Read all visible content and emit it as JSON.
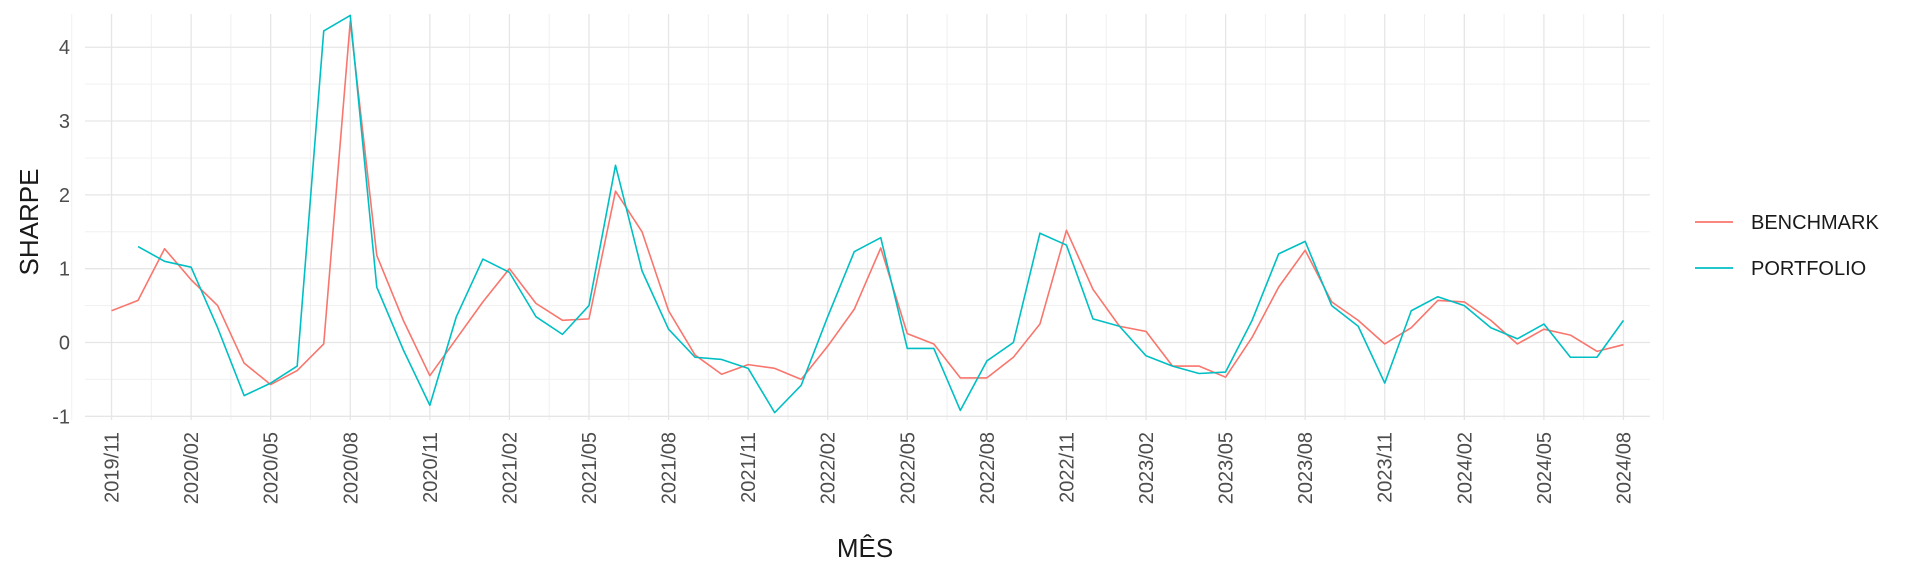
{
  "chart_data": {
    "type": "line",
    "title": "",
    "xlabel": "MÊS",
    "ylabel": "SHARPE",
    "x_tick_labels": [
      "2019/11",
      "2020/02",
      "2020/05",
      "2020/08",
      "2020/11",
      "2021/02",
      "2021/05",
      "2021/08",
      "2021/11",
      "2022/02",
      "2022/05",
      "2022/08",
      "2022/11",
      "2023/02",
      "2023/05",
      "2023/08",
      "2023/11",
      "2024/02",
      "2024/05",
      "2024/08"
    ],
    "y_ticks": [
      -1,
      0,
      1,
      2,
      3,
      4
    ],
    "xlim": [
      "2019/10",
      "2024/09"
    ],
    "ylim": [
      -1.05,
      4.45
    ],
    "grid": true,
    "legend_position": "right",
    "series": [
      {
        "name": "BENCHMARK",
        "color": "#F8766D",
        "x": [
          "2019/11",
          "2019/12",
          "2020/01",
          "2020/02",
          "2020/03",
          "2020/04",
          "2020/05",
          "2020/06",
          "2020/07",
          "2020/08",
          "2020/09",
          "2020/10",
          "2020/11",
          "2020/12",
          "2021/01",
          "2021/02",
          "2021/03",
          "2021/04",
          "2021/05",
          "2021/06",
          "2021/07",
          "2021/08",
          "2021/09",
          "2021/10",
          "2021/11",
          "2021/12",
          "2022/01",
          "2022/02",
          "2022/03",
          "2022/04",
          "2022/05",
          "2022/06",
          "2022/07",
          "2022/08",
          "2022/09",
          "2022/10",
          "2022/11",
          "2022/12",
          "2023/01",
          "2023/02",
          "2023/03",
          "2023/04",
          "2023/05",
          "2023/06",
          "2023/07",
          "2023/08",
          "2023/09",
          "2023/10",
          "2023/11",
          "2023/12",
          "2024/01",
          "2024/02",
          "2024/03",
          "2024/04",
          "2024/05",
          "2024/06",
          "2024/07",
          "2024/08"
        ],
        "values": [
          0.43,
          0.57,
          1.27,
          0.85,
          0.5,
          -0.28,
          -0.57,
          -0.38,
          -0.02,
          4.35,
          1.18,
          0.3,
          -0.45,
          0.05,
          0.55,
          1.0,
          0.53,
          0.3,
          0.32,
          2.05,
          1.5,
          0.43,
          -0.17,
          -0.43,
          -0.3,
          -0.35,
          -0.5,
          -0.05,
          0.45,
          1.28,
          0.12,
          -0.02,
          -0.48,
          -0.48,
          -0.2,
          0.25,
          1.52,
          0.72,
          0.22,
          0.15,
          -0.32,
          -0.32,
          -0.47,
          0.07,
          0.75,
          1.25,
          0.55,
          0.3,
          -0.02,
          0.2,
          0.57,
          0.55,
          0.3,
          -0.02,
          0.18,
          0.1,
          -0.12,
          -0.03
        ]
      },
      {
        "name": "PORTFOLIO",
        "color": "#00BFC4",
        "x": [
          "2019/12",
          "2020/01",
          "2020/02",
          "2020/03",
          "2020/04",
          "2020/05",
          "2020/06",
          "2020/07",
          "2020/08",
          "2020/09",
          "2020/10",
          "2020/11",
          "2020/12",
          "2021/01",
          "2021/02",
          "2021/03",
          "2021/04",
          "2021/05",
          "2021/06",
          "2021/07",
          "2021/08",
          "2021/09",
          "2021/10",
          "2021/11",
          "2021/12",
          "2022/01",
          "2022/02",
          "2022/03",
          "2022/04",
          "2022/05",
          "2022/06",
          "2022/07",
          "2022/08",
          "2022/09",
          "2022/10",
          "2022/11",
          "2022/12",
          "2023/01",
          "2023/02",
          "2023/03",
          "2023/04",
          "2023/05",
          "2023/06",
          "2023/07",
          "2023/08",
          "2023/09",
          "2023/10",
          "2023/11",
          "2023/12",
          "2024/01",
          "2024/02",
          "2024/03",
          "2024/04",
          "2024/05",
          "2024/06",
          "2024/07",
          "2024/08"
        ],
        "values": [
          1.3,
          1.1,
          1.02,
          0.2,
          -0.72,
          -0.55,
          -0.32,
          4.22,
          4.43,
          0.75,
          -0.1,
          -0.85,
          0.35,
          1.13,
          0.95,
          0.35,
          0.11,
          0.5,
          2.4,
          0.97,
          0.18,
          -0.2,
          -0.23,
          -0.35,
          -0.95,
          -0.58,
          0.35,
          1.23,
          1.42,
          -0.08,
          -0.08,
          -0.92,
          -0.25,
          0.0,
          1.48,
          1.32,
          0.32,
          0.22,
          -0.18,
          -0.32,
          -0.42,
          -0.4,
          0.3,
          1.2,
          1.37,
          0.5,
          0.22,
          -0.55,
          0.43,
          0.62,
          0.5,
          0.2,
          0.05,
          0.25,
          -0.2,
          -0.2,
          0.3
        ]
      }
    ]
  }
}
